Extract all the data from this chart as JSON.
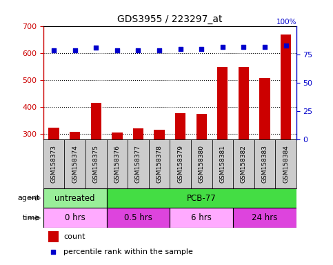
{
  "title": "GDS3955 / 223297_at",
  "samples": [
    "GSM158373",
    "GSM158374",
    "GSM158375",
    "GSM158376",
    "GSM158377",
    "GSM158378",
    "GSM158379",
    "GSM158380",
    "GSM158381",
    "GSM158382",
    "GSM158383",
    "GSM158384"
  ],
  "counts": [
    322,
    307,
    415,
    305,
    320,
    315,
    378,
    373,
    550,
    548,
    508,
    670
  ],
  "percentile_ranks": [
    79,
    79,
    81,
    79,
    79,
    79,
    80,
    80,
    82,
    82,
    82,
    83
  ],
  "ymin": 280,
  "ymax": 700,
  "yticks": [
    300,
    400,
    500,
    600,
    700
  ],
  "right_yticks": [
    0,
    25,
    50,
    75,
    100
  ],
  "bar_color": "#cc0000",
  "dot_color": "#0000cc",
  "agent_groups": [
    {
      "label": "untreated",
      "start": 0,
      "end": 3,
      "color": "#99ee99"
    },
    {
      "label": "PCB-77",
      "start": 3,
      "end": 12,
      "color": "#44dd44"
    }
  ],
  "time_groups": [
    {
      "label": "0 hrs",
      "start": 0,
      "end": 3,
      "color": "#ffaaff"
    },
    {
      "label": "0.5 hrs",
      "start": 3,
      "end": 6,
      "color": "#dd44dd"
    },
    {
      "label": "6 hrs",
      "start": 6,
      "end": 9,
      "color": "#ffaaff"
    },
    {
      "label": "24 hrs",
      "start": 9,
      "end": 12,
      "color": "#dd44dd"
    }
  ],
  "left_axis_color": "#cc0000",
  "right_axis_color": "#0000cc",
  "plot_bg_color": "#ffffff",
  "sample_bg_color": "#cccccc",
  "grid_color": "#000000"
}
